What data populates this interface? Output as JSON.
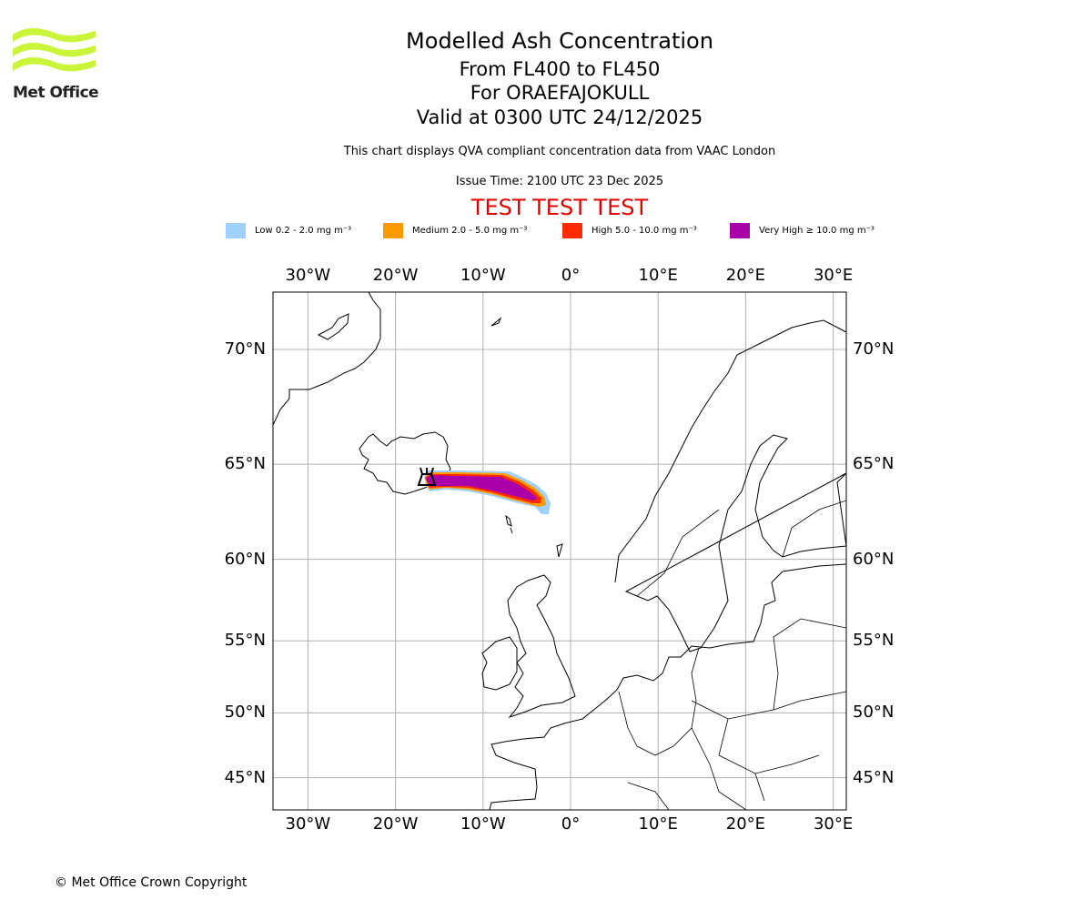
{
  "logo": {
    "text": "Met Office",
    "color": "#c8f53a"
  },
  "title": {
    "line1": "Modelled Ash Concentration",
    "line2": "From FL400 to FL450",
    "line3": "For ORAEFAJOKULL",
    "line4": "Valid at 0300 UTC 24/12/2025"
  },
  "subtitle": "This chart displays QVA compliant concentration data from VAAC London",
  "issue_time": "Issue Time: 2100 UTC 23 Dec 2025",
  "test_banner": "TEST TEST TEST",
  "legend": [
    {
      "label": "Low 0.2 - 2.0 mg m⁻³",
      "color": "#a0d2ff"
    },
    {
      "label": "Medium 2.0 - 5.0 mg m⁻³",
      "color": "#ff9900"
    },
    {
      "label": "High 5.0 - 10.0 mg m⁻³",
      "color": "#ff2a00"
    },
    {
      "label": "Very High ≥ 10.0 mg m⁻³",
      "color": "#aa00aa"
    }
  ],
  "map": {
    "lon_ticks": [
      {
        "value": -30,
        "label": "30°W"
      },
      {
        "value": -20,
        "label": "20°W"
      },
      {
        "value": -10,
        "label": "10°W"
      },
      {
        "value": 0,
        "label": "0°"
      },
      {
        "value": 10,
        "label": "10°E"
      },
      {
        "value": 20,
        "label": "20°E"
      },
      {
        "value": 30,
        "label": "30°E"
      }
    ],
    "lat_ticks": [
      {
        "value": 70,
        "label": "70°N"
      },
      {
        "value": 65,
        "label": "65°N"
      },
      {
        "value": 60,
        "label": "60°N"
      },
      {
        "value": 55,
        "label": "55°N"
      },
      {
        "value": 50,
        "label": "50°N"
      },
      {
        "value": 45,
        "label": "45°N"
      }
    ],
    "volcano": "ORAEFAJOKULL"
  },
  "copyright": "© Met Office Crown Copyright"
}
